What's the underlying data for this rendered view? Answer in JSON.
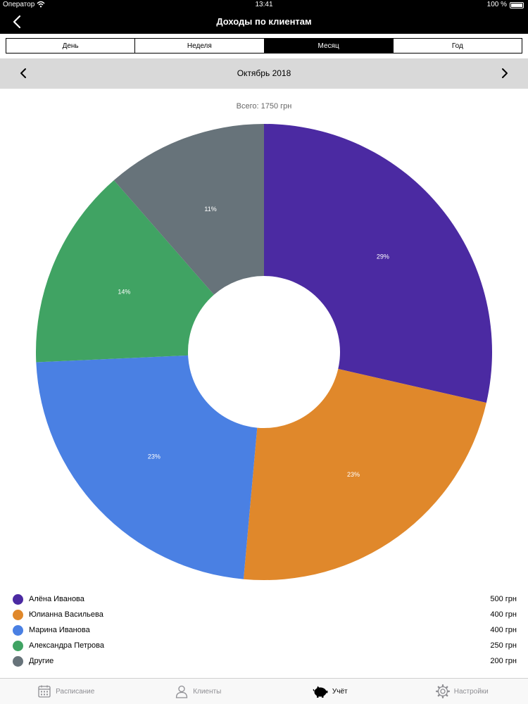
{
  "status": {
    "carrier": "Оператор",
    "time": "13:41",
    "battery": "100 %"
  },
  "header": {
    "title": "Доходы по клиентам"
  },
  "segments": [
    {
      "label": "День",
      "active": false
    },
    {
      "label": "Неделя",
      "active": false
    },
    {
      "label": "Месяц",
      "active": true
    },
    {
      "label": "Год",
      "active": false
    }
  ],
  "period": {
    "label": "Октябрь 2018"
  },
  "total_text": "Всего: 1750 грн",
  "chart_data": {
    "type": "pie",
    "donut": true,
    "total": 1750,
    "unit": "грн",
    "slices": [
      {
        "name": "Алёна Иванова",
        "value": 500,
        "value_text": "500 грн",
        "percent_label": "29%",
        "color": "#4b2aa2"
      },
      {
        "name": "Юлианна Васильева",
        "value": 400,
        "value_text": "400 грн",
        "percent_label": "23%",
        "color": "#e0882b"
      },
      {
        "name": "Марина Иванова",
        "value": 400,
        "value_text": "400 грн",
        "percent_label": "23%",
        "color": "#4a80e3"
      },
      {
        "name": "Александра Петрова",
        "value": 250,
        "value_text": "250 грн",
        "percent_label": "14%",
        "color": "#40a363"
      },
      {
        "name": "Другие",
        "value": 200,
        "value_text": "200 грн",
        "percent_label": "11%",
        "color": "#67737a"
      }
    ]
  },
  "tabs": [
    {
      "label": "Расписание",
      "icon": "calendar-icon",
      "active": false
    },
    {
      "label": "Клиенты",
      "icon": "person-icon",
      "active": false
    },
    {
      "label": "Учёт",
      "icon": "piggy-bank-icon",
      "active": true
    },
    {
      "label": "Настройки",
      "icon": "gear-icon",
      "active": false
    }
  ]
}
